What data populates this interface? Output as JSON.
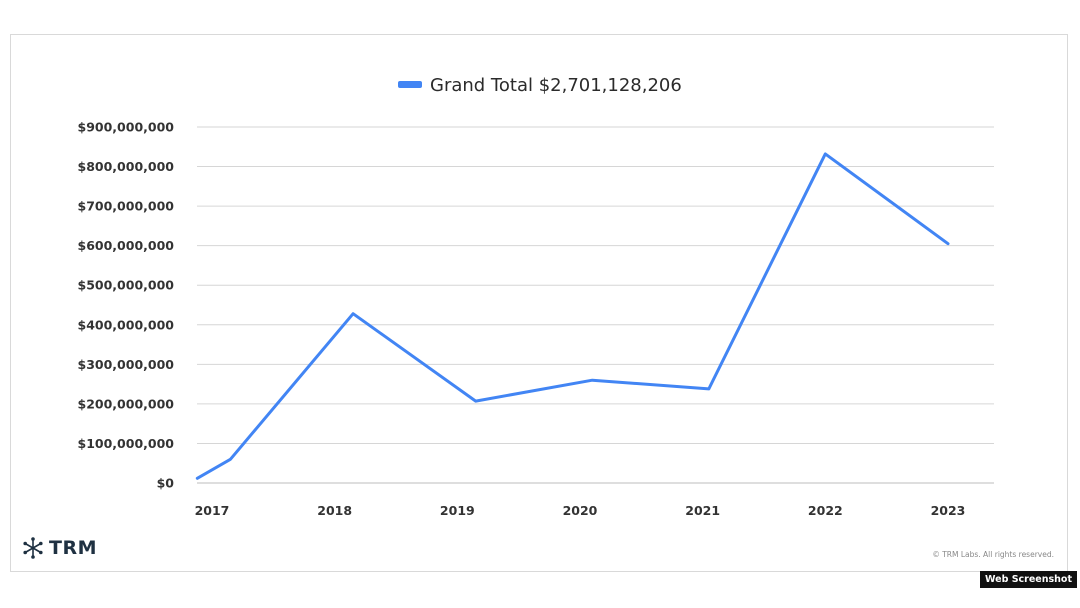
{
  "chart_data": {
    "type": "line",
    "title": "",
    "xlabel": "",
    "ylabel": "",
    "x_tick_labels": [
      "2017",
      "2018",
      "2019",
      "2020",
      "2021",
      "2022",
      "2023"
    ],
    "y_tick_labels": [
      "$0",
      "$100,000,000",
      "$200,000,000",
      "$300,000,000",
      "$400,000,000",
      "$500,000,000",
      "$600,000,000",
      "$700,000,000",
      "$800,000,000",
      "$900,000,000"
    ],
    "ylim": [
      0,
      900000000
    ],
    "xlim": [
      2017,
      2023
    ],
    "grid": true,
    "legend_position": "top-center",
    "series": [
      {
        "name": "Grand Total $2,701,128,206",
        "color": "#4285f4",
        "x": [
          2016.88,
          2017.15,
          2018.15,
          2019.15,
          2020.1,
          2021.05,
          2022.0,
          2023.0
        ],
        "y": [
          12000000,
          60000000,
          428000000,
          207000000,
          260000000,
          238000000,
          832000000,
          605000000
        ]
      }
    ]
  },
  "footer": {
    "brand": "TRM",
    "brand_icon": "snowflake-icon",
    "copyright": "© TRM Labs. All rights reserved."
  },
  "badge": {
    "label": "Web Screenshot"
  }
}
